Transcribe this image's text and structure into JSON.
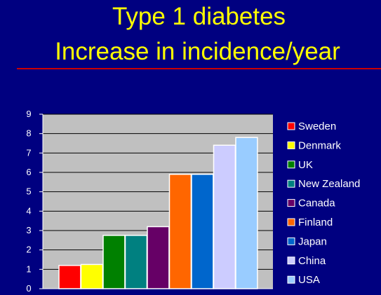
{
  "slide": {
    "title_line1": "Type 1 diabetes",
    "title_line2": "Increase in incidence/year",
    "background_color": "#000080",
    "title_color": "#ffff00",
    "rule_color": "#cc0000"
  },
  "chart_data": {
    "type": "bar",
    "categories": [
      "Sweden",
      "Denmark",
      "UK",
      "New Zealand",
      "Canada",
      "Finland",
      "Japan",
      "China",
      "USA"
    ],
    "values": [
      1.2,
      1.25,
      2.75,
      2.75,
      3.2,
      5.9,
      5.9,
      7.4,
      7.8
    ],
    "colors": [
      "#ff0000",
      "#ffff00",
      "#008000",
      "#008080",
      "#660066",
      "#ff6600",
      "#0066cc",
      "#ccccff",
      "#99ccff"
    ],
    "ylim": [
      0,
      9
    ],
    "yticks": [
      0,
      1,
      2,
      3,
      4,
      5,
      6,
      7,
      8,
      9
    ],
    "grid": true,
    "plot_background": "#c0c0c0",
    "legend_placement": "right",
    "title": "",
    "xlabel": "",
    "ylabel": ""
  }
}
